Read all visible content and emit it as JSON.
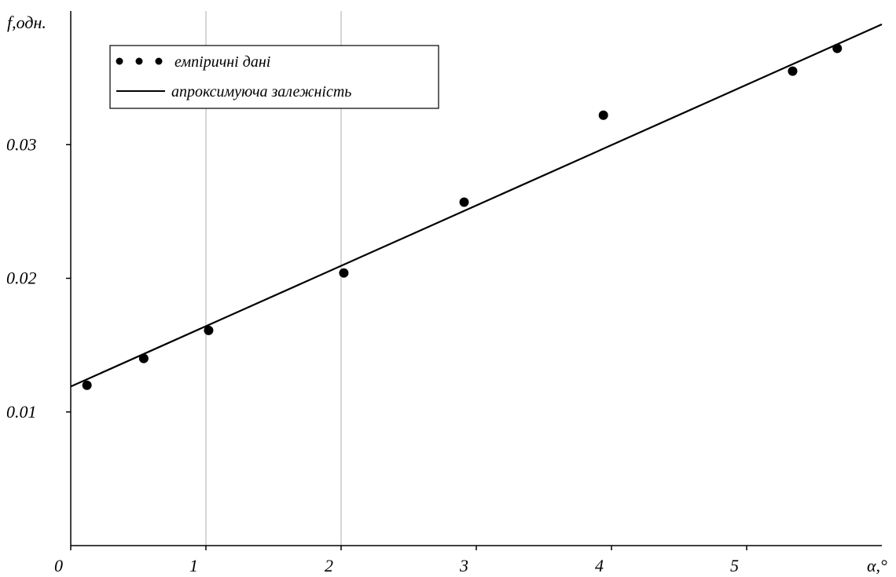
{
  "chart_data": {
    "type": "scatter",
    "title": "",
    "xlabel": "α,°",
    "ylabel": "f,одн.",
    "xlim": [
      0,
      6
    ],
    "ylim": [
      0,
      0.04
    ],
    "x_ticks": [
      {
        "value": 0,
        "label": "0"
      },
      {
        "value": 1,
        "label": "1"
      },
      {
        "value": 2,
        "label": "2"
      },
      {
        "value": 3,
        "label": "3"
      },
      {
        "value": 4,
        "label": "4"
      },
      {
        "value": 5,
        "label": "5"
      }
    ],
    "y_ticks": [
      {
        "value": 0.01,
        "label": "0.01"
      },
      {
        "value": 0.02,
        "label": "0.02"
      },
      {
        "value": 0.03,
        "label": "0.03"
      }
    ],
    "vertical_gridlines_at": [
      1,
      2
    ],
    "legend_position": "top-left",
    "series": [
      {
        "name": "емпіричні дані",
        "kind": "points",
        "color": "#000000",
        "x": [
          0.12,
          0.54,
          1.02,
          2.02,
          2.91,
          3.94,
          5.34,
          5.67
        ],
        "y": [
          0.012,
          0.014,
          0.0161,
          0.0204,
          0.0257,
          0.0322,
          0.0355,
          0.0372
        ]
      },
      {
        "name": "апроксимуюча залежність",
        "kind": "line",
        "color": "#000000",
        "x": [
          0,
          6
        ],
        "y": [
          0.0119,
          0.039
        ]
      }
    ]
  }
}
